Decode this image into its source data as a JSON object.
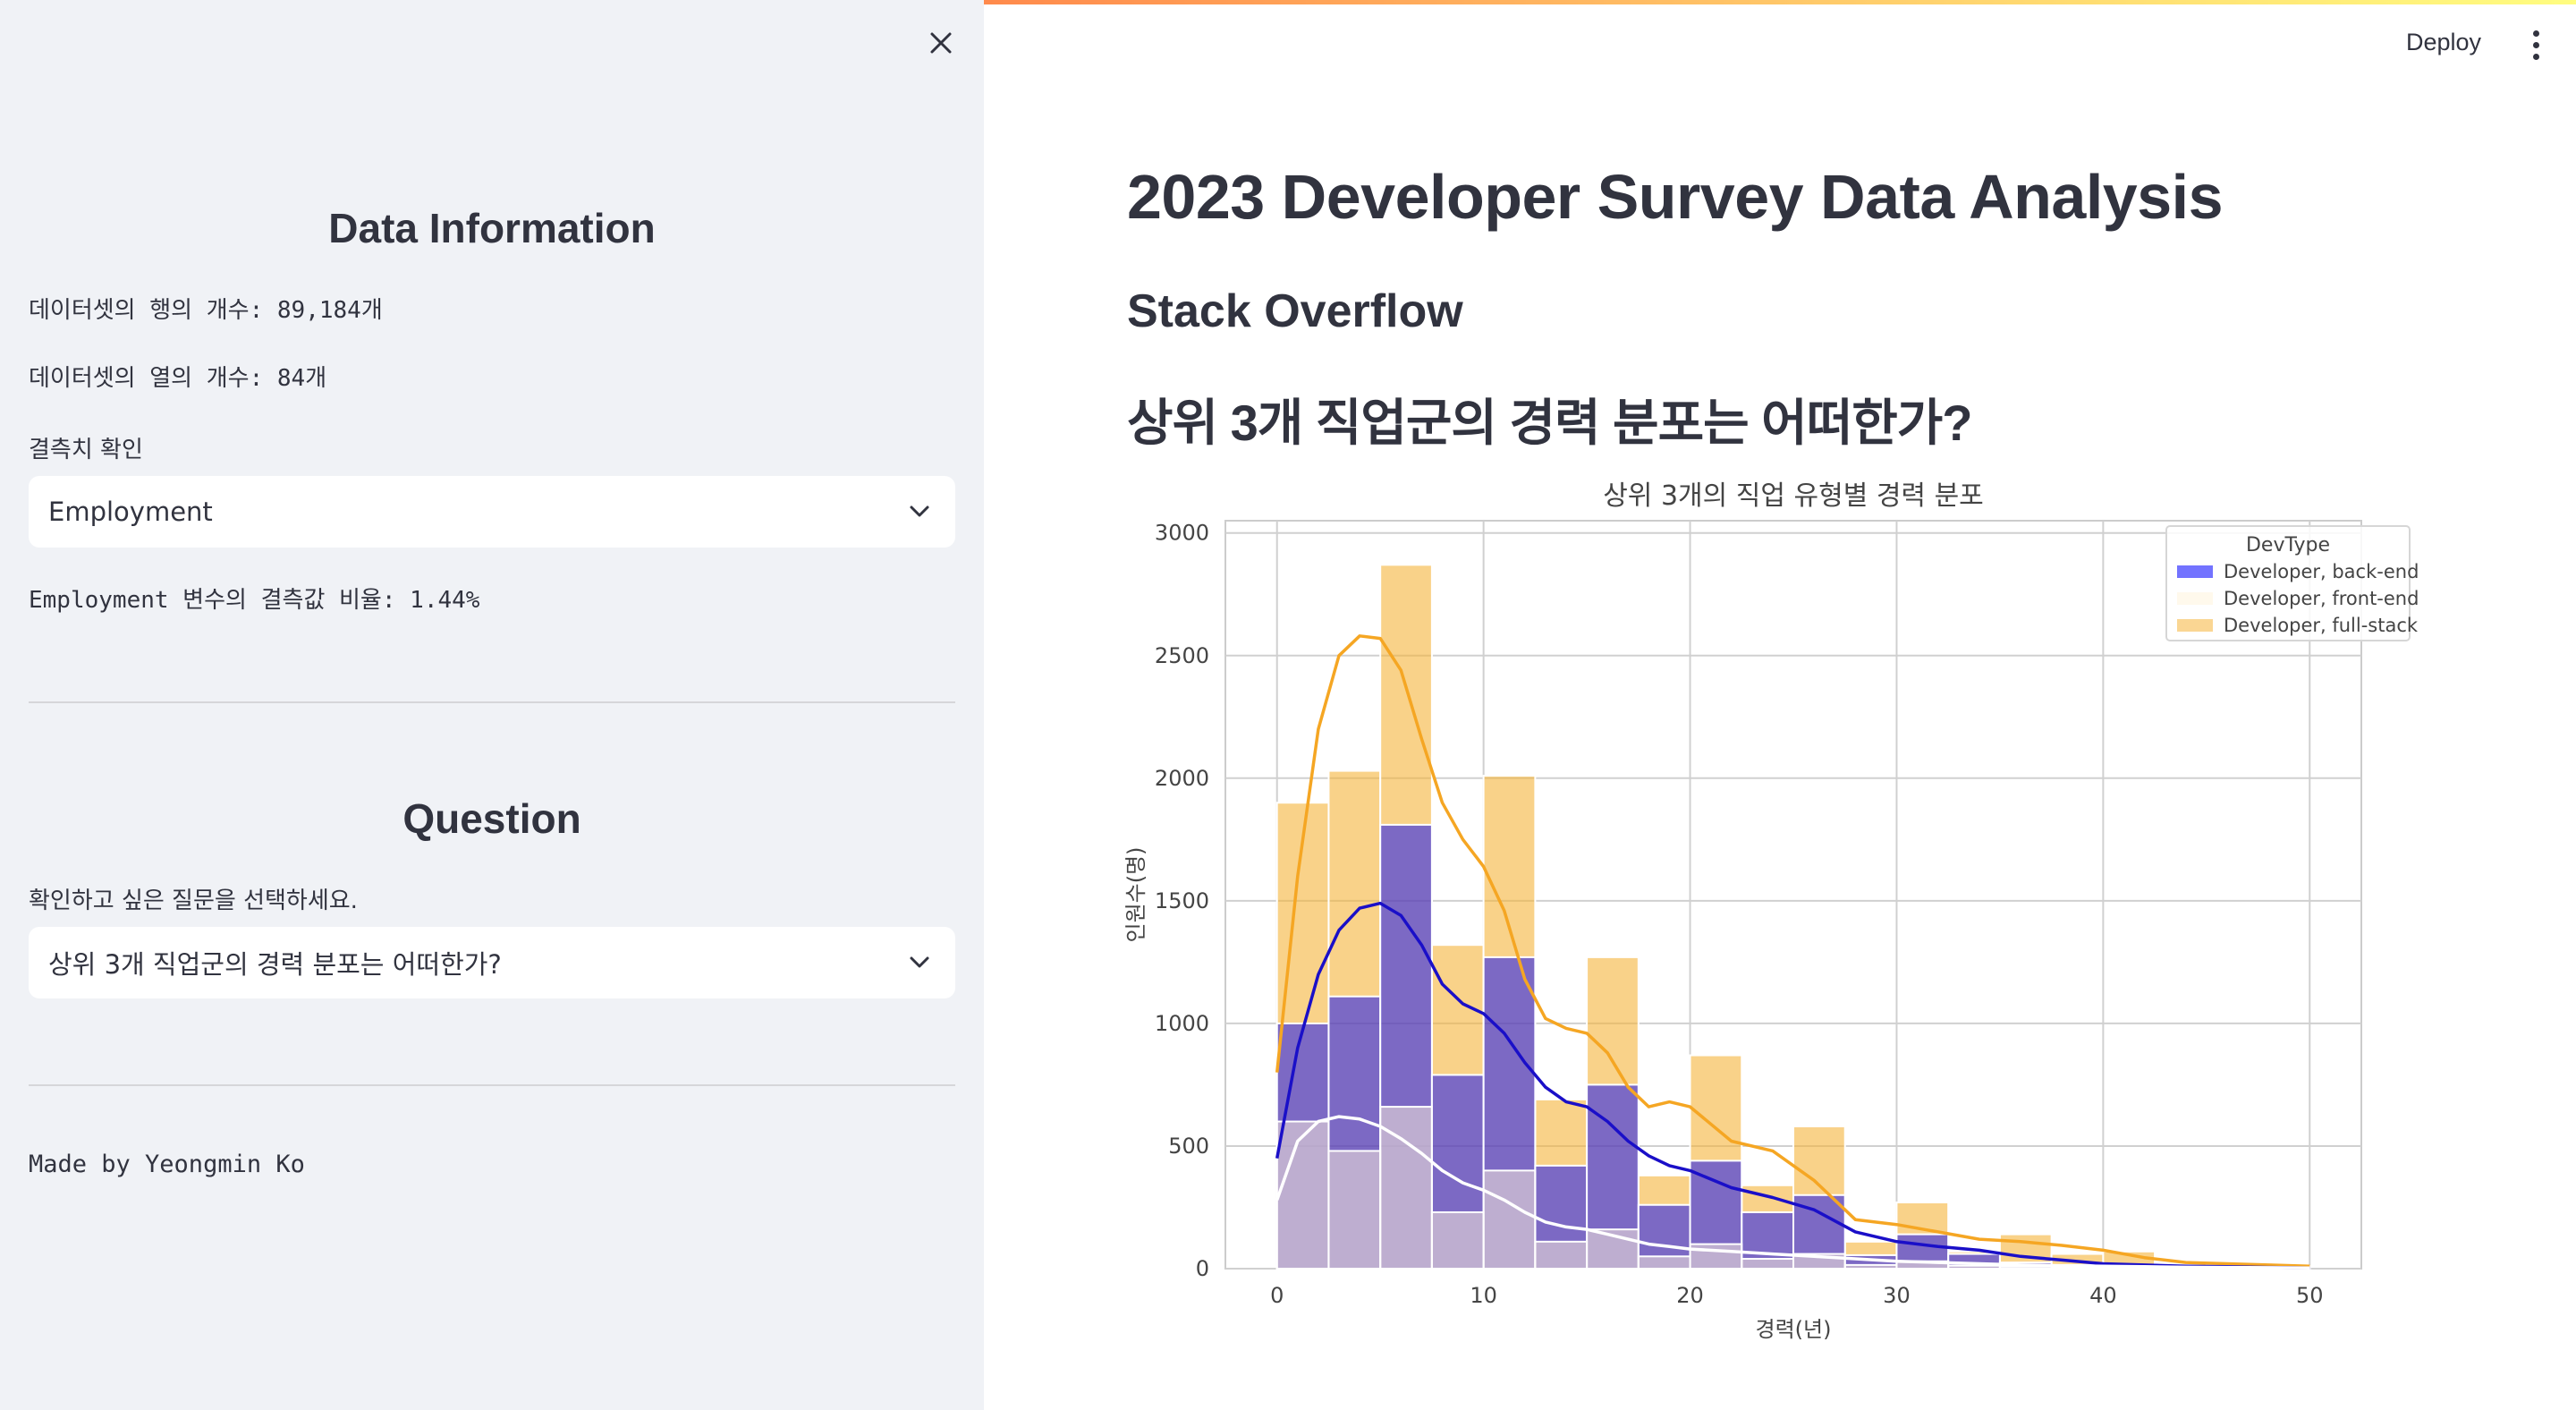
{
  "sidebar": {
    "data_info_title": "Data Information",
    "rows_text": "데이터셋의 행의 개수: 89,184개",
    "cols_text": "데이터셋의 열의 개수: 84개",
    "missing_label": "결측치 확인",
    "missing_select_value": "Employment",
    "missing_ratio_text": "Employment 변수의 결측값 비율: 1.44%",
    "question_title": "Question",
    "question_label": "확인하고 싶은 질문을 선택하세요.",
    "question_select_value": "상위 3개 직업군의 경력 분포는 어떠한가?",
    "footer_text": "Made by Yeongmin Ko"
  },
  "header": {
    "deploy_label": "Deploy"
  },
  "main": {
    "title": "2023 Developer Survey Data Analysis",
    "subtitle": "Stack Overflow",
    "question_heading": "상위 3개 직업군의 경력 분포는 어떠한가?"
  },
  "chart_data": {
    "type": "bar",
    "title": "상위 3개의 직업 유형별 경력 분포",
    "xlabel": "경력(년)",
    "ylabel": "인원수(명)",
    "xlim": [
      -2.5,
      52.5
    ],
    "ylim": [
      0,
      3050
    ],
    "xticks": [
      0,
      10,
      20,
      30,
      40,
      50
    ],
    "yticks": [
      0,
      500,
      1000,
      1500,
      2000,
      2500,
      3000
    ],
    "grid": true,
    "legend_title": "DevType",
    "legend_position": "top-right",
    "bin_edges": [
      0,
      2.5,
      5,
      7.5,
      10,
      12.5,
      15,
      17.5,
      20,
      22.5,
      25,
      27.5,
      30,
      32.5,
      35,
      37.5,
      40,
      42.5,
      45,
      47.5,
      50
    ],
    "series": [
      {
        "name": "Developer, back-end",
        "color": "#0000ff",
        "kde_color": "#1a0fc8",
        "values": [
          1000,
          1110,
          1810,
          790,
          1270,
          420,
          750,
          260,
          440,
          230,
          300,
          55,
          140,
          60,
          25,
          15,
          10,
          5,
          3,
          2
        ],
        "kde_x": [
          0,
          1,
          2,
          3,
          4,
          5,
          6,
          7,
          8,
          9,
          10,
          11,
          12,
          13,
          14,
          15,
          16,
          17,
          18,
          19,
          20,
          22,
          24,
          26,
          28,
          30,
          32,
          34,
          36,
          38,
          40,
          42,
          44,
          46,
          48,
          50
        ],
        "kde_y": [
          450,
          900,
          1200,
          1380,
          1470,
          1490,
          1440,
          1320,
          1160,
          1080,
          1040,
          960,
          840,
          740,
          680,
          660,
          600,
          520,
          460,
          420,
          400,
          330,
          290,
          240,
          150,
          110,
          90,
          75,
          50,
          35,
          20,
          15,
          10,
          8,
          5,
          3
        ]
      },
      {
        "name": "Developer, front-end",
        "color": "#fff4dc",
        "kde_color": "#ffffff",
        "values": [
          600,
          480,
          660,
          230,
          400,
          110,
          160,
          50,
          100,
          40,
          60,
          15,
          30,
          12,
          8,
          5,
          3,
          2,
          1,
          1
        ],
        "kde_x": [
          0,
          1,
          2,
          3,
          4,
          5,
          6,
          7,
          8,
          9,
          10,
          11,
          12,
          13,
          14,
          15,
          16,
          17,
          18,
          19,
          20,
          22,
          24,
          26,
          28,
          30,
          32,
          34,
          36,
          38,
          40,
          42,
          44,
          46,
          48,
          50
        ],
        "kde_y": [
          280,
          520,
          600,
          620,
          610,
          580,
          530,
          470,
          400,
          350,
          320,
          280,
          230,
          190,
          170,
          160,
          140,
          120,
          100,
          90,
          80,
          70,
          60,
          50,
          40,
          30,
          25,
          20,
          15,
          12,
          10,
          8,
          6,
          5,
          4,
          3
        ]
      },
      {
        "name": "Developer, full-stack",
        "color": "#f5b43a",
        "kde_color": "#f5a623",
        "values": [
          1900,
          2030,
          2870,
          1320,
          2010,
          690,
          1270,
          380,
          870,
          340,
          580,
          110,
          270,
          70,
          140,
          60,
          70,
          20,
          15,
          10
        ],
        "kde_x": [
          0,
          1,
          2,
          3,
          4,
          5,
          6,
          7,
          8,
          9,
          10,
          11,
          12,
          13,
          14,
          15,
          16,
          17,
          18,
          19,
          20,
          22,
          24,
          26,
          28,
          30,
          32,
          34,
          36,
          38,
          40,
          42,
          44,
          46,
          48,
          50
        ],
        "kde_y": [
          800,
          1600,
          2200,
          2500,
          2580,
          2570,
          2440,
          2160,
          1900,
          1750,
          1640,
          1460,
          1180,
          1020,
          980,
          960,
          880,
          740,
          660,
          680,
          660,
          520,
          480,
          360,
          200,
          180,
          150,
          120,
          110,
          95,
          75,
          45,
          25,
          20,
          15,
          10
        ]
      }
    ]
  }
}
